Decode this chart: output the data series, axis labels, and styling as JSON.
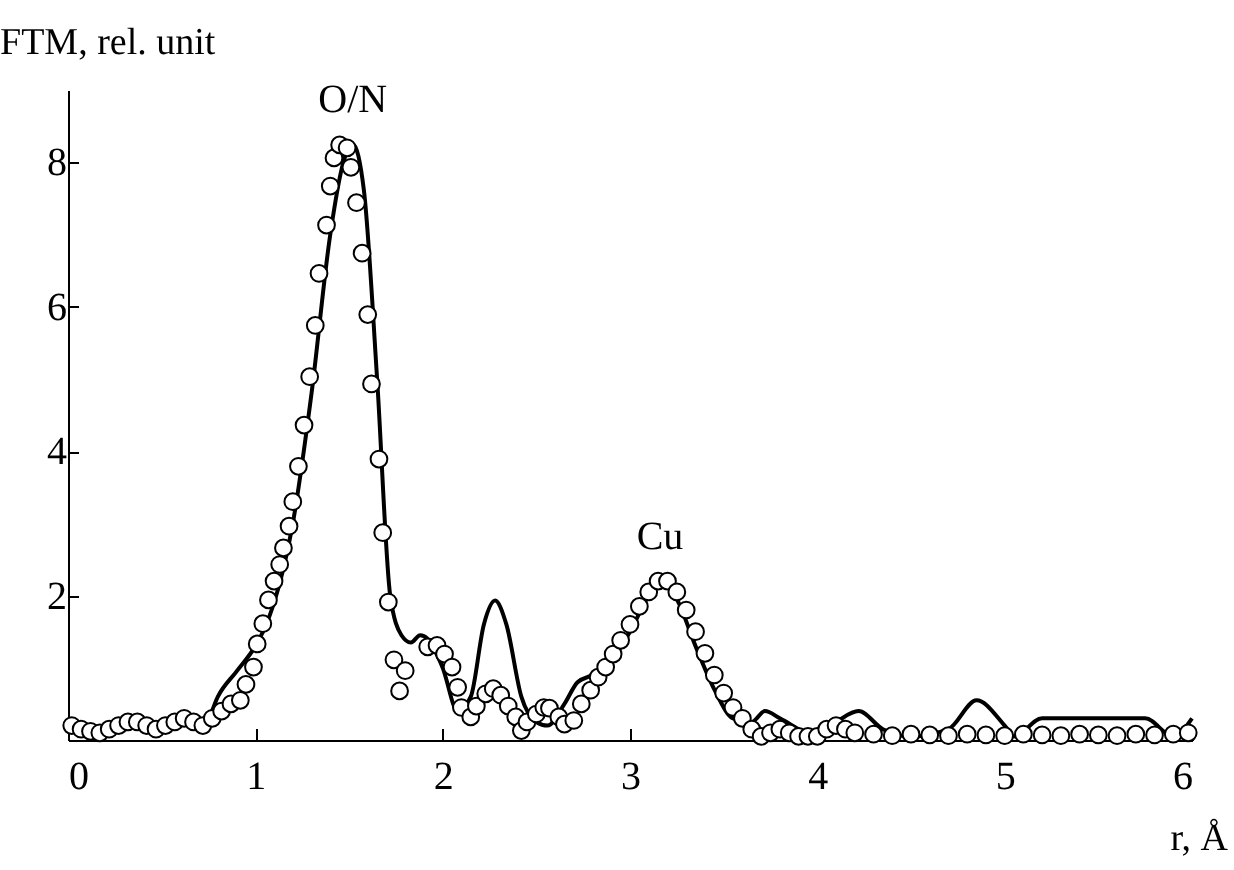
{
  "chart_data": {
    "type": "line",
    "xlabel": "r, Å",
    "ylabel": "FTM, rel. unit",
    "xlim": [
      0,
      6
    ],
    "xticks": [
      0,
      1,
      2,
      3,
      4,
      5,
      6
    ],
    "ylim": [
      0,
      9
    ],
    "yticks": [
      2,
      4,
      6,
      8
    ],
    "grid": false,
    "line_style": "solid",
    "annotations": [
      {
        "text": "O/N",
        "x": 1.52,
        "y": 8.25
      },
      {
        "text": "Cu",
        "x": 3.16,
        "y": 2.2
      }
    ],
    "series": [
      {
        "color": "#000000",
        "x": [
          0,
          0.2,
          0.4,
          0.6,
          0.7,
          0.75,
          0.8,
          0.9,
          1.0,
          1.05,
          1.1,
          1.2,
          1.3,
          1.4,
          1.47,
          1.52,
          1.58,
          1.65,
          1.72,
          1.78,
          1.83,
          1.88,
          1.92,
          2.0,
          2.08,
          2.15,
          2.22,
          2.28,
          2.34,
          2.42,
          2.5,
          2.56,
          2.65,
          2.72,
          2.8,
          2.9,
          3.0,
          3.1,
          3.16,
          3.25,
          3.35,
          3.45,
          3.55,
          3.65,
          3.72,
          3.8,
          3.9,
          3.97,
          4.1,
          4.22,
          4.35,
          4.5,
          4.7,
          4.85,
          5.0,
          5.05,
          5.2,
          5.5,
          5.75,
          5.9,
          6.0
        ],
        "values": [
          0.15,
          0.1,
          0.2,
          0.25,
          0.2,
          0.3,
          0.6,
          0.95,
          1.3,
          1.55,
          1.9,
          3.0,
          4.8,
          7.0,
          8.0,
          8.25,
          7.6,
          5.0,
          2.0,
          1.45,
          1.35,
          1.45,
          1.4,
          1.0,
          0.4,
          0.6,
          1.6,
          1.93,
          1.6,
          0.6,
          0.25,
          0.2,
          0.5,
          0.8,
          0.9,
          1.1,
          1.5,
          2.0,
          2.2,
          1.95,
          1.3,
          0.7,
          0.3,
          0.25,
          0.4,
          0.3,
          0.15,
          0.05,
          0.25,
          0.4,
          0.15,
          0.05,
          0.15,
          0.55,
          0.2,
          0.05,
          0.3,
          0.3,
          0.3,
          0.05,
          0.3
        ]
      },
      {
        "type": "scatter",
        "color": "#000000",
        "marker": "circle",
        "x": [
          0.02,
          0.07,
          0.12,
          0.17,
          0.22,
          0.27,
          0.32,
          0.37,
          0.42,
          0.47,
          0.52,
          0.57,
          0.62,
          0.67,
          0.72,
          0.77,
          0.82,
          0.87,
          0.92,
          0.95,
          0.99,
          1.01,
          1.04,
          1.07,
          1.1,
          1.13,
          1.15,
          1.18,
          1.2,
          1.23,
          1.26,
          1.29,
          1.32,
          1.34,
          1.38,
          1.4,
          1.42,
          1.45,
          1.49,
          1.51,
          1.54,
          1.57,
          1.6,
          1.62,
          1.66,
          1.68,
          1.71,
          1.74,
          1.77,
          1.8,
          1.92,
          1.97,
          2.01,
          2.05,
          2.08,
          2.1,
          2.15,
          2.18,
          2.23,
          2.27,
          2.31,
          2.35,
          2.39,
          2.42,
          2.45,
          2.5,
          2.54,
          2.57,
          2.62,
          2.65,
          2.7,
          2.74,
          2.79,
          2.83,
          2.87,
          2.91,
          2.95,
          3.0,
          3.05,
          3.1,
          3.15,
          3.2,
          3.25,
          3.3,
          3.35,
          3.4,
          3.45,
          3.5,
          3.55,
          3.6,
          3.65,
          3.7,
          3.75,
          3.8,
          3.85,
          3.9,
          3.95,
          4.0,
          4.05,
          4.1,
          4.15,
          4.2,
          4.3,
          4.4,
          4.5,
          4.6,
          4.7,
          4.8,
          4.9,
          5.0,
          5.1,
          5.2,
          5.3,
          5.4,
          5.5,
          5.6,
          5.7,
          5.8,
          5.9,
          5.98
        ],
        "values": [
          0.2,
          0.15,
          0.12,
          0.1,
          0.15,
          0.2,
          0.25,
          0.25,
          0.2,
          0.15,
          0.2,
          0.25,
          0.3,
          0.25,
          0.2,
          0.3,
          0.4,
          0.5,
          0.55,
          0.77,
          1.01,
          1.33,
          1.61,
          1.94,
          2.2,
          2.43,
          2.66,
          2.96,
          3.3,
          3.79,
          4.36,
          5.03,
          5.74,
          6.46,
          7.13,
          7.67,
          8.06,
          8.24,
          8.2,
          7.93,
          7.44,
          6.74,
          5.89,
          4.93,
          3.89,
          2.87,
          1.91,
          1.11,
          0.68,
          0.96,
          1.29,
          1.31,
          1.19,
          1.01,
          0.73,
          0.45,
          0.32,
          0.47,
          0.64,
          0.71,
          0.62,
          0.47,
          0.32,
          0.13,
          0.25,
          0.36,
          0.45,
          0.44,
          0.32,
          0.22,
          0.27,
          0.5,
          0.69,
          0.87,
          1.01,
          1.19,
          1.38,
          1.6,
          1.85,
          2.05,
          2.2,
          2.2,
          2.05,
          1.8,
          1.5,
          1.2,
          0.9,
          0.65,
          0.45,
          0.3,
          0.15,
          0.05,
          0.1,
          0.15,
          0.1,
          0.05,
          0.05,
          0.05,
          0.15,
          0.2,
          0.15,
          0.1,
          0.08,
          0.06,
          0.08,
          0.07,
          0.06,
          0.08,
          0.07,
          0.06,
          0.08,
          0.07,
          0.06,
          0.08,
          0.07,
          0.06,
          0.08,
          0.07,
          0.08,
          0.1
        ]
      }
    ]
  }
}
